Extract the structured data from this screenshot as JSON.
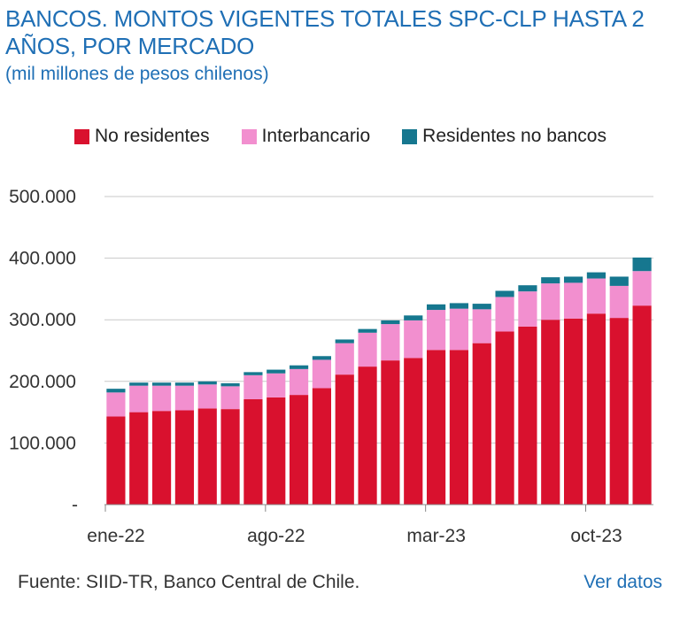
{
  "chart_data": {
    "type": "bar",
    "stacked": true,
    "title": "BANCOS. MONTOS VIGENTES TOTALES SPC-CLP HASTA 2 AÑOS, POR MERCADO",
    "subtitle": "(mil millones de pesos chilenos)",
    "ylim": [
      0,
      500000
    ],
    "y_ticks": [
      "-",
      "100.000",
      "200.000",
      "300.000",
      "400.000",
      "500.000"
    ],
    "x_tick_labels": [
      {
        "index": 0,
        "label": "ene-22"
      },
      {
        "index": 7,
        "label": "ago-22"
      },
      {
        "index": 14,
        "label": "mar-23"
      },
      {
        "index": 21,
        "label": "oct-23"
      }
    ],
    "legend_position": "top",
    "grid": true,
    "categories": [
      "ene-22",
      "feb-22",
      "mar-22",
      "abr-22",
      "may-22",
      "jun-22",
      "jul-22",
      "ago-22",
      "sep-22",
      "oct-22",
      "nov-22",
      "dic-22",
      "ene-23",
      "feb-23",
      "mar-23",
      "abr-23",
      "may-23",
      "jun-23",
      "jul-23",
      "ago-23",
      "sep-23",
      "oct-23",
      "nov-23",
      "dic-23"
    ],
    "series": [
      {
        "name": "No residentes",
        "color": "#d9112e",
        "values": [
          143000,
          150000,
          152000,
          153000,
          156000,
          155000,
          171000,
          174000,
          178000,
          189000,
          211000,
          224000,
          234000,
          238000,
          251000,
          251000,
          262000,
          281000,
          289000,
          300000,
          302000,
          310000,
          303000,
          323000
        ]
      },
      {
        "name": "Interbancario",
        "color": "#f28fcf",
        "values": [
          39000,
          43000,
          41000,
          40000,
          39000,
          37000,
          39000,
          39000,
          42000,
          46000,
          51000,
          55000,
          59000,
          61000,
          65000,
          67000,
          55000,
          56000,
          57000,
          59000,
          58000,
          57000,
          52000,
          56000
        ]
      },
      {
        "name": "Residentes no bancos",
        "color": "#16778f",
        "values": [
          6000,
          5000,
          5000,
          5000,
          5000,
          5000,
          5000,
          6000,
          6000,
          6000,
          6000,
          6000,
          6000,
          8000,
          9000,
          9000,
          9000,
          10000,
          10000,
          10000,
          10000,
          10000,
          15000,
          22000
        ]
      }
    ]
  },
  "footer": {
    "source": "Fuente: SIID-TR, Banco Central de Chile.",
    "link": "Ver datos"
  }
}
